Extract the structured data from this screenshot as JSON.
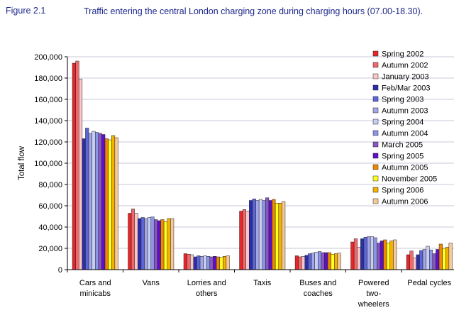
{
  "figure": {
    "number": "Figure 2.1",
    "title": "Traffic entering the central London charging zone during charging hours (07.00-18.30)."
  },
  "chart_data": {
    "type": "bar",
    "title": "Traffic entering the central London charging zone during charging hours (07.00-18.30).",
    "ylabel": "Total flow",
    "xlabel": "",
    "ylim": [
      0,
      200000
    ],
    "yticks": [
      0,
      20000,
      40000,
      60000,
      80000,
      100000,
      120000,
      140000,
      160000,
      180000,
      200000
    ],
    "ytick_labels": [
      "0",
      "20,000",
      "40,000",
      "60,000",
      "80,000",
      "100,000",
      "120,000",
      "140,000",
      "160,000",
      "180,000",
      "200,000"
    ],
    "grid": "horizontal",
    "legend_position": "right",
    "categories": [
      [
        "Cars and",
        "minicabs"
      ],
      [
        "Vans"
      ],
      [
        "Lorries and",
        "others"
      ],
      [
        "Taxis"
      ],
      [
        "Buses and",
        "coaches"
      ],
      [
        "Powered",
        "two-",
        "wheelers"
      ],
      [
        "Pedal cycles"
      ]
    ],
    "series": [
      {
        "name": "Spring 2002",
        "color": "#e8262a",
        "values": [
          194000,
          53000,
          15000,
          55000,
          13000,
          26000,
          14000
        ]
      },
      {
        "name": "Autumn 2002",
        "color": "#f0686a",
        "values": [
          196000,
          57000,
          14500,
          56500,
          12000,
          29000,
          17500
        ]
      },
      {
        "name": "January 2003",
        "color": "#f9c6c8",
        "values": [
          179000,
          53000,
          14000,
          55000,
          12500,
          21000,
          11000
        ]
      },
      {
        "name": "Feb/Mar 2003",
        "color": "#2b2fa8",
        "values": [
          123000,
          48000,
          12000,
          65000,
          13500,
          29000,
          14000
        ]
      },
      {
        "name": "Spring 2003",
        "color": "#5c66d9",
        "values": [
          133000,
          49000,
          13000,
          66500,
          15000,
          30500,
          18000
        ]
      },
      {
        "name": "Autumn 2003",
        "color": "#a3a7e6",
        "values": [
          128000,
          48000,
          12500,
          65000,
          15500,
          31000,
          19000
        ]
      },
      {
        "name": "Spring 2004",
        "color": "#c9cdf3",
        "values": [
          130000,
          49000,
          13000,
          66000,
          16500,
          31000,
          22000
        ]
      },
      {
        "name": "Autumn 2004",
        "color": "#8a95e6",
        "values": [
          129000,
          49500,
          12500,
          65000,
          17000,
          30000,
          18500
        ]
      },
      {
        "name": "March 2005",
        "color": "#8a55c4",
        "values": [
          128000,
          47000,
          12000,
          67500,
          16000,
          25000,
          15000
        ]
      },
      {
        "name": "Spring 2005",
        "color": "#6010c8",
        "values": [
          127000,
          46000,
          12500,
          65000,
          16000,
          27000,
          19000
        ]
      },
      {
        "name": "Autumn 2005",
        "color": "#ee8a00",
        "values": [
          123000,
          47000,
          12000,
          66000,
          16000,
          28000,
          24000
        ]
      },
      {
        "name": "November 2005",
        "color": "#ffff20",
        "values": [
          122000,
          45000,
          11500,
          62500,
          14500,
          25000,
          20000
        ]
      },
      {
        "name": "Spring 2006",
        "color": "#f2b200",
        "values": [
          126000,
          48000,
          12500,
          62500,
          15000,
          27000,
          21000
        ]
      },
      {
        "name": "Autumn 2006",
        "color": "#f7c89a",
        "values": [
          124000,
          48000,
          13000,
          64000,
          15500,
          28000,
          25000
        ]
      }
    ]
  }
}
